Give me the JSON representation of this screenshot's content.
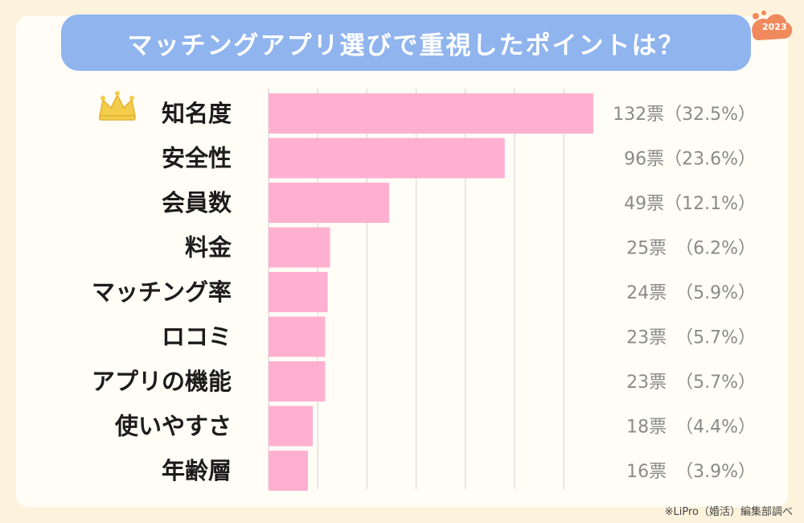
{
  "title": "マッチングアプリ選びで重視したポイントは？",
  "badge_text": "2023",
  "footer": "※LiPro（婚活）編集部調べ",
  "colors": {
    "bar": "#ffb0d0",
    "title_bg": "#8fb4ee",
    "grid": "#d8d8d8",
    "crown": "#f3cc4a"
  },
  "crown_icon": "crown-icon",
  "chart_data": {
    "type": "bar",
    "orientation": "horizontal",
    "categories": [
      "知名度",
      "安全性",
      "会員数",
      "料金",
      "マッチング率",
      "ロコミ",
      "アプリの機能",
      "使いやすさ",
      "年齢層"
    ],
    "values": [
      132,
      96,
      49,
      25,
      24,
      23,
      23,
      18,
      16
    ],
    "value_labels": [
      "132票（32.5%）",
      "96票（23.6%）",
      "49票（12.1%）",
      "25票　（6.2%）",
      "24票　（5.9%）",
      "23票　（5.7%）",
      "23票　（5.7%）",
      "18票　（4.4%）",
      "16票　（3.9%）"
    ],
    "xlim": [
      0,
      140
    ],
    "grid": true
  }
}
